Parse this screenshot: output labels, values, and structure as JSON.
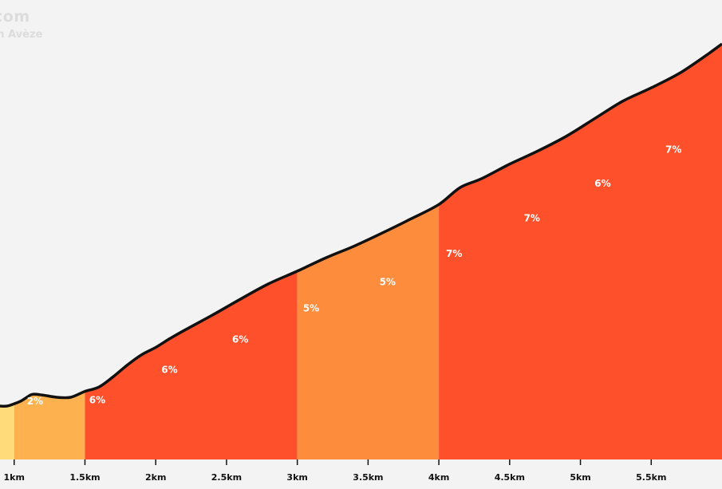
{
  "watermark": {
    "line1": "com",
    "line2": "m Avèze"
  },
  "colors": {
    "background": "#f3f3f3",
    "profile_line": "#111111",
    "grade_2": "#ffdb7a",
    "grade_3": "#fdb24f",
    "grade_5": "#fd8c3c",
    "grade_6_7": "#fe502b",
    "label": "#ffffff",
    "axis_text": "#111111"
  },
  "chart_data": {
    "type": "area",
    "title": "",
    "xlabel": "",
    "ylabel": "",
    "x_unit": "km",
    "xlim": [
      0.9,
      6.0
    ],
    "grid": false,
    "legend": "none",
    "x_ticks": [
      {
        "value": 1.0,
        "label": "1km"
      },
      {
        "value": 1.5,
        "label": "1.5km"
      },
      {
        "value": 2.0,
        "label": "2km"
      },
      {
        "value": 2.5,
        "label": "2.5km"
      },
      {
        "value": 3.0,
        "label": "3km"
      },
      {
        "value": 3.5,
        "label": "3.5km"
      },
      {
        "value": 4.0,
        "label": "4km"
      },
      {
        "value": 4.5,
        "label": "4.5km"
      },
      {
        "value": 5.0,
        "label": "5km"
      },
      {
        "value": 5.5,
        "label": "5.5km"
      }
    ],
    "segments": [
      {
        "start_km": 0.9,
        "end_km": 1.0,
        "color": "#ffdb7a",
        "label": ""
      },
      {
        "start_km": 1.0,
        "end_km": 1.5,
        "color": "#fdb24f",
        "label": "2%",
        "label_km": 1.09,
        "label_alt": 2.4
      },
      {
        "start_km": 1.5,
        "end_km": 3.0,
        "color": "#fe502b",
        "label": "6%",
        "label_km": 1.53,
        "label_alt": 4.0
      },
      {
        "start_km": 1.5,
        "end_km": 3.0,
        "color": "#fe502b",
        "label": "6%",
        "label_km": 2.04,
        "label_alt": 45.0
      },
      {
        "start_km": 1.5,
        "end_km": 3.0,
        "color": "#fe502b",
        "label": "6%",
        "label_km": 2.54,
        "label_alt": 86.5
      },
      {
        "start_km": 3.0,
        "end_km": 4.0,
        "color": "#fd8c3c",
        "label": "5%",
        "label_km": 3.04,
        "label_alt": 129.0
      },
      {
        "start_km": 3.0,
        "end_km": 4.0,
        "color": "#fd8c3c",
        "label": "5%",
        "label_km": 3.58,
        "label_alt": 165.0
      },
      {
        "start_km": 4.0,
        "end_km": 6.0,
        "color": "#fe502b",
        "label": "7%",
        "label_km": 4.05,
        "label_alt": 203.5
      },
      {
        "start_km": 4.0,
        "end_km": 6.0,
        "color": "#fe502b",
        "label": "7%",
        "label_km": 4.6,
        "label_alt": 252.0
      },
      {
        "start_km": 4.0,
        "end_km": 6.0,
        "color": "#fe502b",
        "label": "6%",
        "label_km": 5.1,
        "label_alt": 299.0
      },
      {
        "start_km": 4.0,
        "end_km": 6.0,
        "color": "#fe502b",
        "label": "7%",
        "label_km": 5.6,
        "label_alt": 345.5
      }
    ],
    "profile": [
      {
        "km": 0.9,
        "alt": 0
      },
      {
        "km": 0.95,
        "alt": 0
      },
      {
        "km": 1.0,
        "alt": 3
      },
      {
        "km": 1.05,
        "alt": 7
      },
      {
        "km": 1.09,
        "alt": 12
      },
      {
        "km": 1.13,
        "alt": 16
      },
      {
        "km": 1.2,
        "alt": 15
      },
      {
        "km": 1.3,
        "alt": 12
      },
      {
        "km": 1.4,
        "alt": 12
      },
      {
        "km": 1.5,
        "alt": 20
      },
      {
        "km": 1.6,
        "alt": 26
      },
      {
        "km": 1.7,
        "alt": 40
      },
      {
        "km": 1.8,
        "alt": 56
      },
      {
        "km": 1.9,
        "alt": 70
      },
      {
        "km": 2.0,
        "alt": 80
      },
      {
        "km": 2.1,
        "alt": 92
      },
      {
        "km": 2.2,
        "alt": 103
      },
      {
        "km": 2.4,
        "alt": 124
      },
      {
        "km": 2.6,
        "alt": 146
      },
      {
        "km": 2.8,
        "alt": 167
      },
      {
        "km": 3.0,
        "alt": 184
      },
      {
        "km": 3.2,
        "alt": 202
      },
      {
        "km": 3.4,
        "alt": 218
      },
      {
        "km": 3.6,
        "alt": 236
      },
      {
        "km": 3.8,
        "alt": 255
      },
      {
        "km": 4.0,
        "alt": 275
      },
      {
        "km": 4.15,
        "alt": 298
      },
      {
        "km": 4.3,
        "alt": 310
      },
      {
        "km": 4.5,
        "alt": 330
      },
      {
        "km": 4.7,
        "alt": 348
      },
      {
        "km": 4.9,
        "alt": 368
      },
      {
        "km": 5.1,
        "alt": 392
      },
      {
        "km": 5.3,
        "alt": 416
      },
      {
        "km": 5.5,
        "alt": 434
      },
      {
        "km": 5.7,
        "alt": 454
      },
      {
        "km": 5.9,
        "alt": 480
      },
      {
        "km": 6.0,
        "alt": 494
      }
    ]
  }
}
